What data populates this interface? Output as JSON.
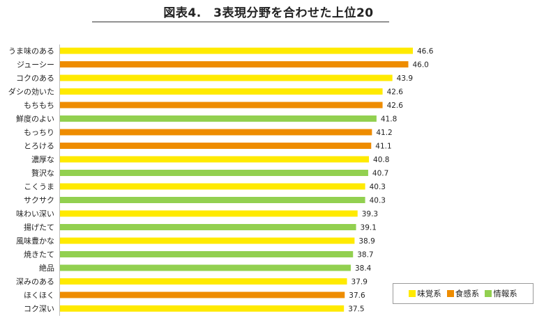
{
  "chart_data": {
    "type": "bar",
    "orientation": "horizontal",
    "title": "図表4.　3表現分野を合わせた上位20",
    "categories": [
      "うま味のある",
      "ジューシー",
      "コクのある",
      "ダシの効いた",
      "もちもち",
      "鮮度のよい",
      "もっちり",
      "とろける",
      "濃厚な",
      "贅沢な",
      "こくうま",
      "サクサク",
      "味わい深い",
      "揚げたて",
      "風味豊かな",
      "焼きたて",
      "絶品",
      "深みのある",
      "ほくほく",
      "コク深い"
    ],
    "values": [
      46.6,
      46.0,
      43.9,
      42.6,
      42.6,
      41.8,
      41.2,
      41.1,
      40.8,
      40.7,
      40.3,
      40.3,
      39.3,
      39.1,
      38.9,
      38.7,
      38.4,
      37.9,
      37.6,
      37.5
    ],
    "value_labels": [
      "46.6",
      "46.0",
      "43.9",
      "42.6",
      "42.6",
      "41.8",
      "41.2",
      "41.1",
      "40.8",
      "40.7",
      "40.3",
      "40.3",
      "39.3",
      "39.1",
      "38.9",
      "38.7",
      "38.4",
      "37.9",
      "37.6",
      "37.5"
    ],
    "groups": [
      "味覚系",
      "食感系",
      "味覚系",
      "味覚系",
      "食感系",
      "情報系",
      "食感系",
      "食感系",
      "味覚系",
      "情報系",
      "味覚系",
      "情報系",
      "味覚系",
      "情報系",
      "味覚系",
      "情報系",
      "情報系",
      "味覚系",
      "食感系",
      "味覚系"
    ],
    "xlim": [
      0,
      50
    ],
    "grid": false,
    "legend": {
      "placement": "bottom-right",
      "entries": [
        {
          "name": "味覚系",
          "color": "#ffea00"
        },
        {
          "name": "食感系",
          "color": "#ee8c00"
        },
        {
          "name": "情報系",
          "color": "#92d050"
        }
      ]
    }
  }
}
